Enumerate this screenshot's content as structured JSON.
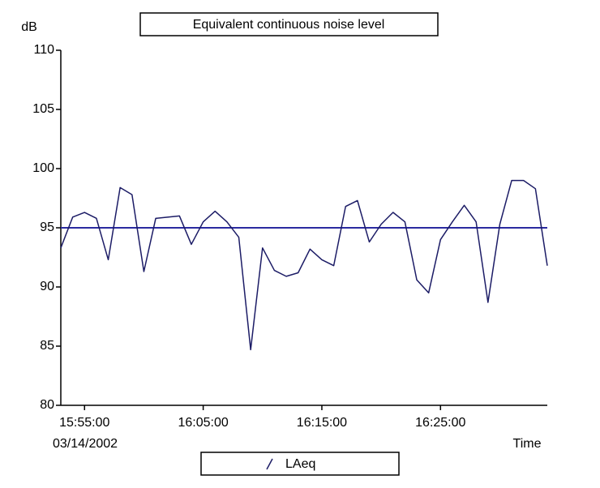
{
  "chart_data": {
    "type": "line",
    "title": "Equivalent continuous noise level",
    "y_label": "dB",
    "x_label": "Time",
    "date_label": "03/14/2002",
    "x": [
      "15:53:00",
      "15:54:00",
      "15:55:00",
      "15:56:00",
      "15:57:00",
      "15:58:00",
      "15:59:00",
      "16:00:00",
      "16:01:00",
      "16:02:00",
      "16:03:00",
      "16:04:00",
      "16:05:00",
      "16:06:00",
      "16:07:00",
      "16:08:00",
      "16:09:00",
      "16:10:00",
      "16:11:00",
      "16:12:00",
      "16:13:00",
      "16:14:00",
      "16:15:00",
      "16:16:00",
      "16:17:00",
      "16:18:00",
      "16:19:00",
      "16:20:00",
      "16:21:00",
      "16:22:00",
      "16:23:00",
      "16:24:00",
      "16:25:00",
      "16:26:00",
      "16:27:00",
      "16:28:00",
      "16:29:00",
      "16:30:00",
      "16:31:00",
      "16:32:00",
      "16:33:00",
      "16:34:00"
    ],
    "series": [
      {
        "name": "LAeq",
        "color": "#1c1c66",
        "values": [
          93.3,
          95.9,
          96.3,
          95.8,
          92.3,
          98.4,
          97.8,
          91.3,
          95.8,
          95.9,
          96.0,
          93.6,
          95.5,
          96.4,
          95.5,
          94.2,
          84.7,
          93.3,
          91.4,
          90.9,
          91.2,
          93.2,
          92.3,
          91.8,
          96.8,
          97.3,
          93.8,
          95.3,
          96.3,
          95.5,
          90.6,
          89.5,
          94.0,
          95.5,
          96.9,
          95.5,
          88.7,
          95.3,
          99.0,
          99.0,
          98.3,
          91.8
        ]
      }
    ],
    "reference_line": {
      "value": 95,
      "color": "#2a2aa0"
    },
    "ylim": [
      80,
      110
    ],
    "yticks": [
      80,
      85,
      90,
      95,
      100,
      105,
      110
    ],
    "xticks": [
      "15:55:00",
      "16:05:00",
      "16:15:00",
      "16:25:00"
    ]
  }
}
